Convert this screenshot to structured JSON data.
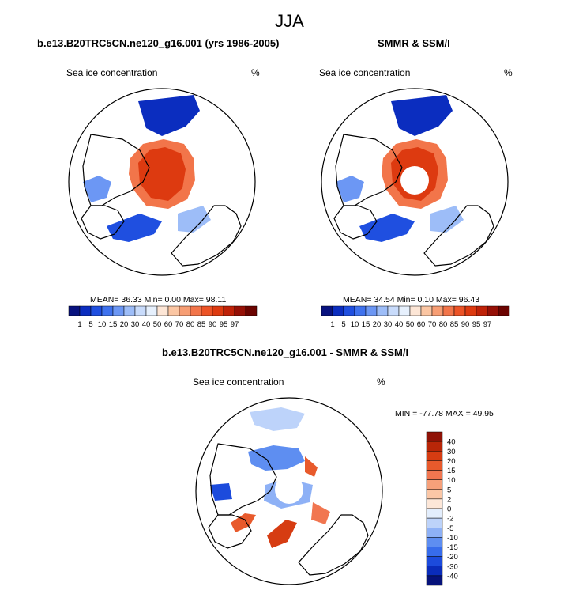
{
  "title": "JJA",
  "panels": [
    {
      "title": "b.e13.B20TRC5CN.ne120_g16.001 (yrs 1986-2005)",
      "variable": "Sea ice concentration",
      "units": "%",
      "stats": "MEAN=  36.33  Min=   0.00  Max=  98.11",
      "pole_hole": false
    },
    {
      "title": "SMMR & SSM/I",
      "variable": "Sea ice concentration",
      "units": "%",
      "stats": "MEAN=  34.54  Min=   0.10  Max=  96.43",
      "pole_hole": true
    },
    {
      "title": "b.e13.B20TRC5CN.ne120_g16.001 - SMMR & SSM/I",
      "variable": "Sea ice concentration",
      "units": "%",
      "stats": "MIN = -77.78 MAX =  49.95",
      "pole_hole": true
    }
  ],
  "colors": {
    "concentration": [
      "#08127f",
      "#0b2dbf",
      "#1f4fe0",
      "#3f72ee",
      "#6c97f4",
      "#9dbdf8",
      "#c8dbfb",
      "#e6f0fd",
      "#fde6d6",
      "#fbc6a3",
      "#f79e74",
      "#f2754a",
      "#ec5326",
      "#dd3a10",
      "#bf2208",
      "#961006",
      "#6b0300"
    ],
    "difference": [
      "#06127a",
      "#0a2cba",
      "#1c4bdc",
      "#376ceb",
      "#5e8ef1",
      "#8eb1f6",
      "#bdd3fa",
      "#e3eefd",
      "#fde7d8",
      "#fbc7a6",
      "#f6a07a",
      "#f17650",
      "#e85a2c",
      "#d63c12",
      "#b82608",
      "#8f1206"
    ]
  },
  "chart_data": [
    {
      "type": "heatmap",
      "projection": "north-polar-stereographic",
      "title": "b.e13.B20TRC5CN.ne120_g16.001 (yrs 1986-2005)",
      "variable": "Sea ice concentration",
      "units": "%",
      "mean": 36.33,
      "min": 0.0,
      "max": 98.11,
      "colorbar_levels": [
        1,
        5,
        10,
        15,
        20,
        30,
        40,
        50,
        60,
        70,
        80,
        85,
        90,
        95,
        97
      ]
    },
    {
      "type": "heatmap",
      "projection": "north-polar-stereographic",
      "title": "SMMR & SSM/I",
      "variable": "Sea ice concentration",
      "units": "%",
      "mean": 34.54,
      "min": 0.1,
      "max": 96.43,
      "colorbar_levels": [
        1,
        5,
        10,
        15,
        20,
        30,
        40,
        50,
        60,
        70,
        80,
        85,
        90,
        95,
        97
      ]
    },
    {
      "type": "heatmap",
      "projection": "north-polar-stereographic",
      "title": "b.e13.B20TRC5CN.ne120_g16.001 - SMMR & SSM/I",
      "variable": "Sea ice concentration",
      "units": "%",
      "min": -77.78,
      "max": 49.95,
      "colorbar_levels": [
        40,
        30,
        20,
        15,
        10,
        5,
        2,
        0,
        -2,
        -5,
        -10,
        -15,
        -20,
        -30,
        -40
      ]
    }
  ]
}
